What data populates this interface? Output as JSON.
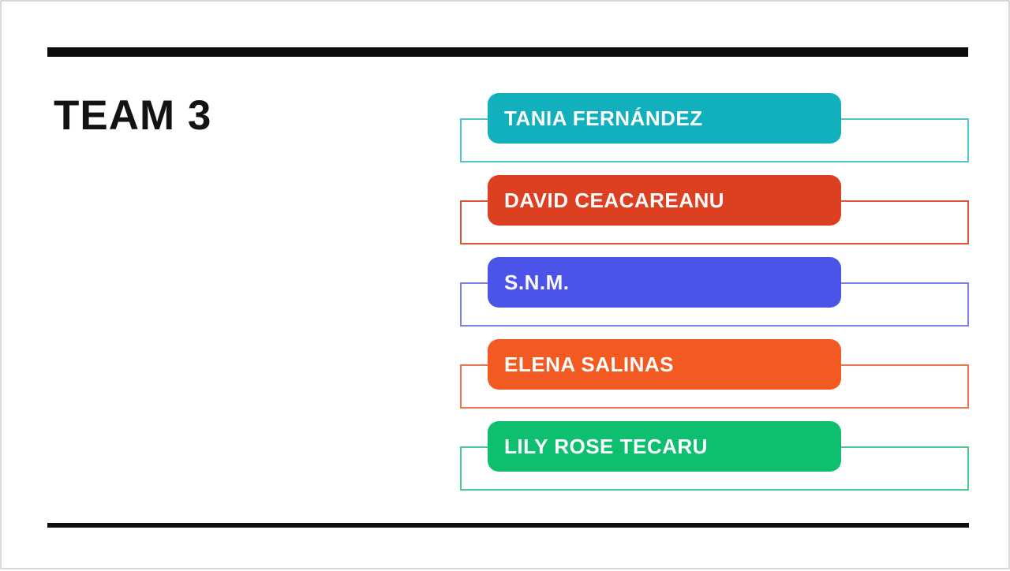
{
  "slide": {
    "title": "TEAM 3",
    "background_color": "#ffffff",
    "border_color": "#d7d7d7",
    "accent_bar_color": "#0c0c0c",
    "member_text_color": "#fdfdfd"
  },
  "members": [
    {
      "name": "TANIA FERNÁNDEZ",
      "fill_color": "#12b0bd",
      "outline_color": "#4cc4cc"
    },
    {
      "name": "DAVID CEACAREANU",
      "fill_color": "#dd3f21",
      "outline_color": "#e1523a"
    },
    {
      "name": "S.N.M.",
      "fill_color": "#4c53e9",
      "outline_color": "#7b80e8"
    },
    {
      "name": "ELENA SALINAS",
      "fill_color": "#f35a21",
      "outline_color": "#e8764a"
    },
    {
      "name": "LILY ROSE TECARU",
      "fill_color": "#0fbf70",
      "outline_color": "#47ca90"
    }
  ]
}
